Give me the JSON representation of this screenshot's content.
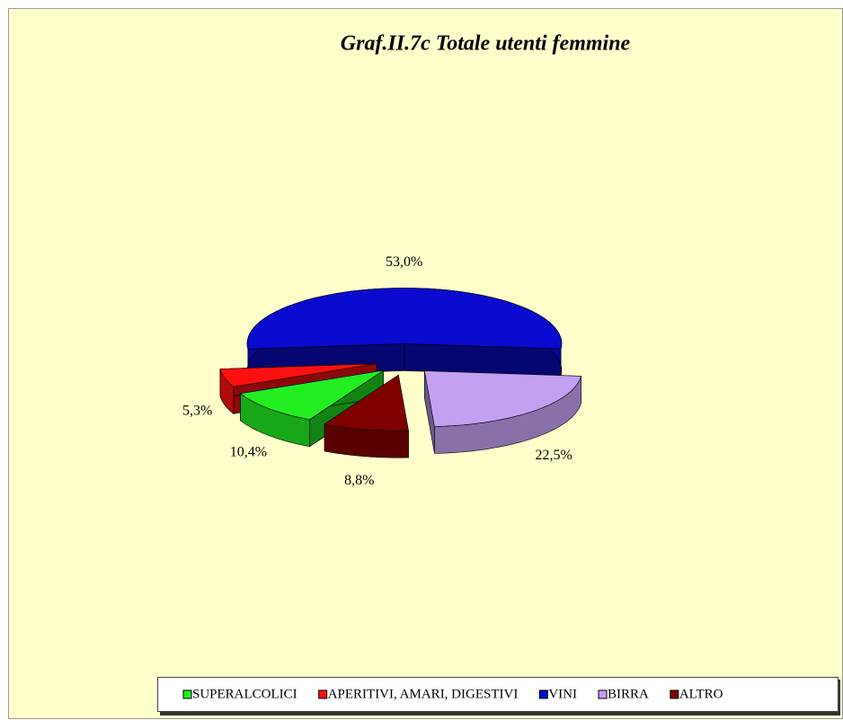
{
  "chart_data": {
    "type": "pie",
    "title": "Graf.II.7c Totale utenti femmine",
    "categories": [
      "SUPERALCOLICI",
      "APERITIVI, AMARI, DIGESTIVI",
      "VINI",
      "BIRRA",
      "ALTRO"
    ],
    "values": [
      10.4,
      5.3,
      53.0,
      22.5,
      8.8
    ],
    "value_labels": [
      "10,4%",
      "5,3%",
      "53,0%",
      "22,5%",
      "8,8%"
    ],
    "colors": [
      "#22ee22",
      "#ff1010",
      "#0a0ad0",
      "#c3a0f2",
      "#800000"
    ]
  }
}
